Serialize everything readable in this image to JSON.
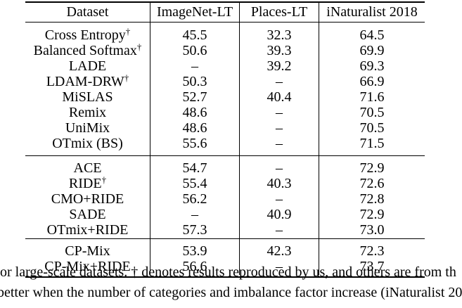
{
  "table": {
    "headers": [
      "Dataset",
      "ImageNet-LT",
      "Places-LT",
      "iNaturalist 2018"
    ],
    "groups": [
      {
        "rows": [
          {
            "method": "Cross Entropy",
            "mark": "†",
            "imagenet": "45.5",
            "places": "32.3",
            "inat": "64.5"
          },
          {
            "method": "Balanced Softmax",
            "mark": "†",
            "imagenet": "50.6",
            "places": "39.3",
            "inat": "69.9"
          },
          {
            "method": "LADE",
            "mark": "",
            "imagenet": "–",
            "places": "39.2",
            "inat": "69.3"
          },
          {
            "method": "LDAM-DRW",
            "mark": "†",
            "imagenet": "50.3",
            "places": "–",
            "inat": "66.9"
          },
          {
            "method": "MiSLAS",
            "mark": "",
            "imagenet": "52.7",
            "places": "40.4",
            "inat": "71.6"
          },
          {
            "method": "Remix",
            "mark": "",
            "imagenet": "48.6",
            "places": "–",
            "inat": "70.5"
          },
          {
            "method": "UniMix",
            "mark": "",
            "imagenet": "48.6",
            "places": "–",
            "inat": "70.5"
          },
          {
            "method": "OTmix (BS)",
            "mark": "",
            "imagenet": "55.6",
            "places": "–",
            "inat": "71.5"
          }
        ]
      },
      {
        "rows": [
          {
            "method": "ACE",
            "mark": "",
            "imagenet": "54.7",
            "places": "–",
            "inat": "72.9"
          },
          {
            "method": "RIDE",
            "mark": "†",
            "imagenet": "55.4",
            "places": "40.3",
            "inat": "72.6"
          },
          {
            "method": "CMO+RIDE",
            "mark": "",
            "imagenet": "56.2",
            "places": "–",
            "inat": "72.8"
          },
          {
            "method": "SADE",
            "mark": "",
            "imagenet": "–",
            "places": "40.9",
            "inat": "72.9"
          },
          {
            "method": "OTmix+RIDE",
            "mark": "",
            "imagenet": "57.3",
            "places": "–",
            "inat": "73.0"
          }
        ]
      },
      {
        "rows": [
          {
            "method": "CP-Mix",
            "mark": "",
            "imagenet": "53.9",
            "places": "42.3",
            "inat": "72.3"
          },
          {
            "method": "CP-Mix+RIDE",
            "mark": "",
            "imagenet": "56.6",
            "places": "–",
            "inat": "73.7"
          }
        ]
      }
    ]
  },
  "caption": {
    "line1": "or large-scale datasets. † denotes results reproduced by us, and others are from th",
    "line2": "better when the number of categories and imbalance factor increase (iNaturalist 20"
  }
}
